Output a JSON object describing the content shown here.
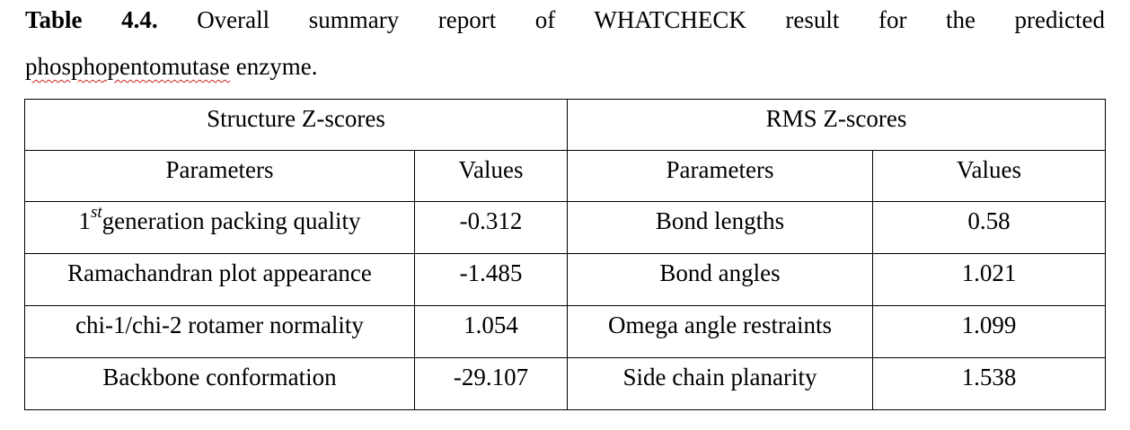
{
  "caption": {
    "label": "Table 4.4.",
    "text_line1": "Overall summary report of WHATCHECK result for the predicted",
    "text_line2_flagged_word": "phosphopentomutase",
    "text_line2_rest": " enzyme."
  },
  "table": {
    "groups": [
      "Structure Z-scores",
      "RMS Z-scores"
    ],
    "columns": [
      "Parameters",
      "Values",
      "Parameters",
      "Values"
    ],
    "rows": [
      {
        "structure_param_prefix": "1",
        "structure_param_sup": "st",
        "structure_param": "generation packing quality",
        "structure_value": "-0.312",
        "rms_param": "Bond lengths",
        "rms_value": "0.58"
      },
      {
        "structure_param": "Ramachandran plot appearance",
        "structure_value": "-1.485",
        "rms_param": "Bond angles",
        "rms_value": "1.021"
      },
      {
        "structure_param": "chi-1/chi-2 rotamer normality",
        "structure_value": "1.054",
        "rms_param": "Omega angle restraints",
        "rms_value": "1.099"
      },
      {
        "structure_param": "Backbone conformation",
        "structure_value": "-29.107",
        "rms_param": "Side chain planarity",
        "rms_value": "1.538"
      }
    ]
  }
}
